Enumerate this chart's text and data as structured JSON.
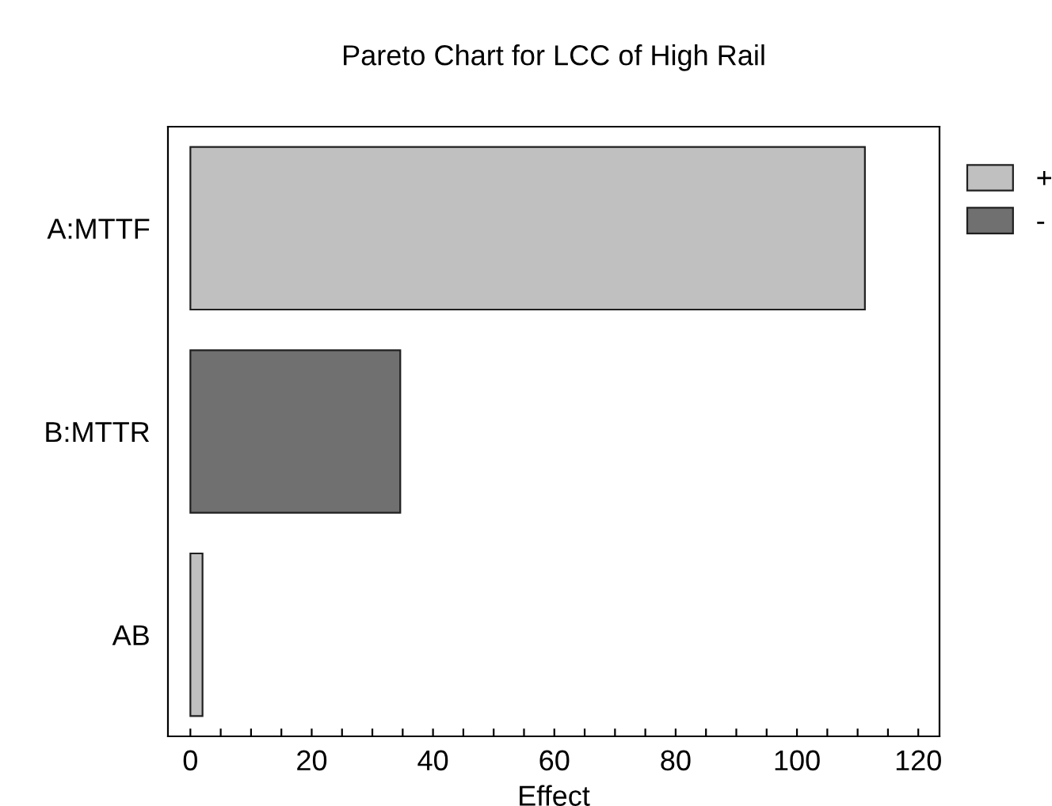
{
  "chart_data": {
    "type": "bar",
    "orientation": "horizontal",
    "title": "Pareto Chart for LCC of High Rail",
    "xlabel": "Effect",
    "categories": [
      "A:MTTF",
      "B:MTTR",
      "AB"
    ],
    "series": [
      {
        "name": "+",
        "color": "#c0c0c0",
        "values": [
          111.2,
          null,
          2.0
        ]
      },
      {
        "name": "-",
        "color": "#707070",
        "values": [
          null,
          34.6,
          null
        ]
      }
    ],
    "xlim": [
      -3.7,
      123.5
    ],
    "xticks": [
      0,
      {
        "value": 5,
        "label": null
      },
      {
        "value": 10,
        "label": null
      },
      {
        "value": 15,
        "label": null
      },
      20,
      {
        "value": 25,
        "label": null
      },
      {
        "value": 30,
        "label": null
      },
      {
        "value": 35,
        "label": null
      },
      40,
      {
        "value": 45,
        "label": null
      },
      {
        "value": 50,
        "label": null
      },
      {
        "value": 55,
        "label": null
      },
      60,
      {
        "value": 65,
        "label": null
      },
      {
        "value": 70,
        "label": null
      },
      {
        "value": 75,
        "label": null
      },
      80,
      {
        "value": 85,
        "label": null
      },
      {
        "value": 90,
        "label": null
      },
      {
        "value": 95,
        "label": null
      },
      100,
      {
        "value": 105,
        "label": null
      },
      {
        "value": 110,
        "label": null
      },
      {
        "value": 115,
        "label": null
      },
      120
    ],
    "grid": false,
    "legend": "top right"
  }
}
